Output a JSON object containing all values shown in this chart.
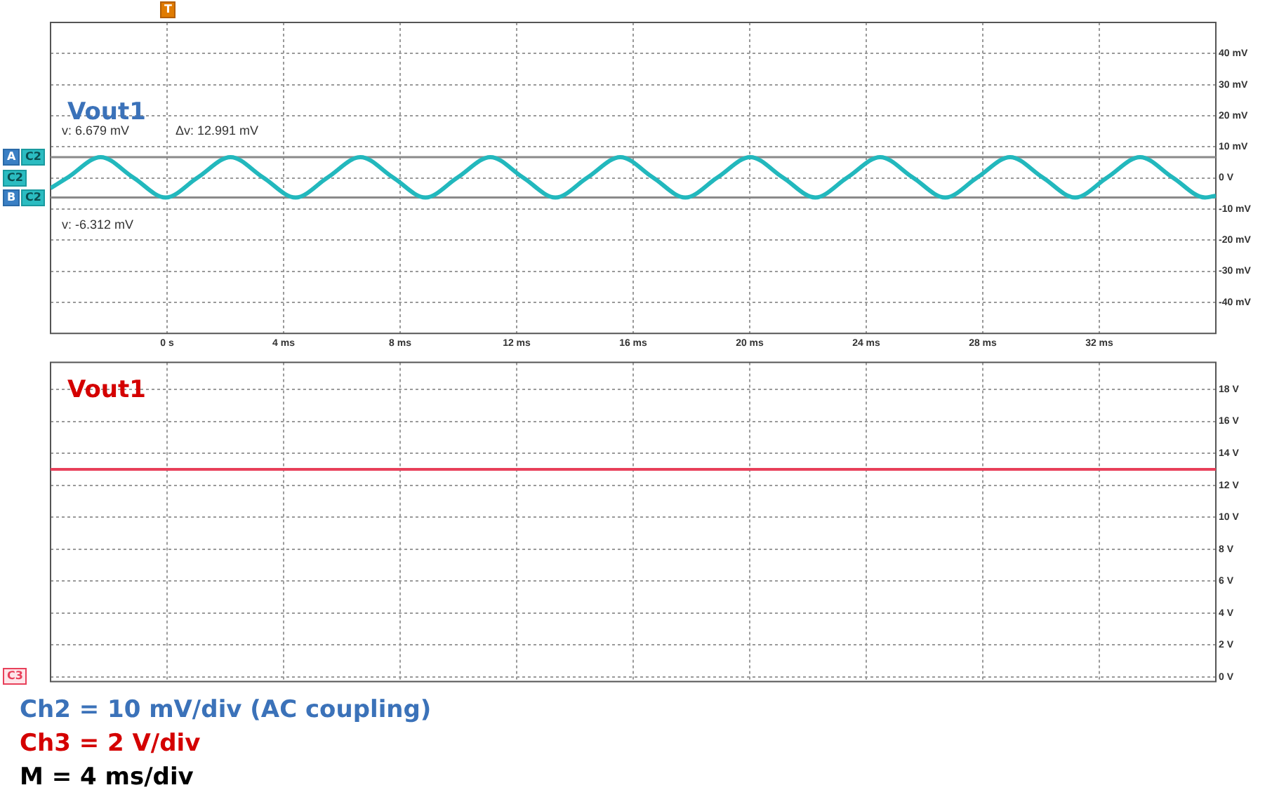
{
  "chart_data": [
    {
      "type": "line",
      "title": "Vout1",
      "xlim": [
        -4,
        36
      ],
      "xticks": [
        {
          "value": 0,
          "label": "0 s"
        },
        {
          "value": 4,
          "label": "4 ms"
        },
        {
          "value": 8,
          "label": "8 ms"
        },
        {
          "value": 12,
          "label": "12 ms"
        },
        {
          "value": 16,
          "label": "16 ms"
        },
        {
          "value": 20,
          "label": "20 ms"
        },
        {
          "value": 24,
          "label": "24 ms"
        },
        {
          "value": 28,
          "label": "28 ms"
        },
        {
          "value": 32,
          "label": "32 ms"
        }
      ],
      "ylim": [
        -50,
        50
      ],
      "yticks": [
        {
          "value": -40,
          "label": "-40 mV"
        },
        {
          "value": -30,
          "label": "-30 mV"
        },
        {
          "value": -20,
          "label": "-20 mV"
        },
        {
          "value": -10,
          "label": "-10 mV"
        },
        {
          "value": 0,
          "label": "0 V"
        },
        {
          "value": 10,
          "label": "10 mV"
        },
        {
          "value": 20,
          "label": "20 mV"
        },
        {
          "value": 30,
          "label": "30 mV"
        },
        {
          "value": 40,
          "label": "40 mV"
        }
      ],
      "grid": true,
      "legend": false,
      "marker": "none",
      "line_style": "solid",
      "series": [
        {
          "color": "#22b8bd",
          "x": [
            -4,
            -3.4,
            -2.28,
            -1.17,
            -0.05,
            1.06,
            2.18,
            3.29,
            4.41,
            5.52,
            6.64,
            7.75,
            8.87,
            9.98,
            11.1,
            12.21,
            13.33,
            14.44,
            15.56,
            16.67,
            17.79,
            18.9,
            20.02,
            21.13,
            22.25,
            23.36,
            24.48,
            25.59,
            26.71,
            27.82,
            28.94,
            30.05,
            31.17,
            32.28,
            33.4,
            34.51,
            35.63,
            36
          ],
          "values": [
            -3.3,
            0.2,
            6.7,
            0.2,
            -6.3,
            0.2,
            6.7,
            0.2,
            -6.3,
            0.2,
            6.7,
            0.2,
            -6.3,
            0.2,
            6.7,
            0.2,
            -6.3,
            0.2,
            6.7,
            0.2,
            -6.3,
            0.2,
            6.7,
            0.2,
            -6.3,
            0.2,
            6.7,
            0.2,
            -6.3,
            0.2,
            6.7,
            0.2,
            -6.3,
            0.2,
            6.7,
            0.2,
            -6.3,
            -5.7
          ]
        }
      ],
      "ref_lines": [
        {
          "axis": "y",
          "value": 6.679,
          "label": "v: 6.679 mV",
          "color": "#8a8a8a"
        },
        {
          "axis": "y",
          "value": -6.312,
          "label": "v: -6.312 mV",
          "color": "#8a8a8a"
        }
      ],
      "annotations": [
        "Δv: 12.991 mV",
        "T",
        "A",
        "C2",
        "C2",
        "B",
        "C2"
      ]
    },
    {
      "type": "line",
      "title": "Vout1",
      "xlim": [
        -4,
        36
      ],
      "xticks": [
        0,
        4,
        8,
        12,
        16,
        20,
        24,
        28,
        32
      ],
      "ylim": [
        -0.3,
        19.7
      ],
      "yticks": [
        {
          "value": 0,
          "label": "0 V"
        },
        {
          "value": 2,
          "label": "2 V"
        },
        {
          "value": 4,
          "label": "4 V"
        },
        {
          "value": 6,
          "label": "6 V"
        },
        {
          "value": 8,
          "label": "8 V"
        },
        {
          "value": 10,
          "label": "10 V"
        },
        {
          "value": 12,
          "label": "12 V"
        },
        {
          "value": 14,
          "label": "14 V"
        },
        {
          "value": 16,
          "label": "16 V"
        },
        {
          "value": 18,
          "label": "18 V"
        }
      ],
      "grid": true,
      "legend": false,
      "marker": "none",
      "line_style": "solid",
      "tick_labels": "y",
      "series": [
        {
          "color": "#e8405a",
          "x": [
            -4,
            36
          ],
          "values": [
            13.0,
            13.0
          ]
        }
      ],
      "annotations": [
        "C3",
        "Ch2 = 10 mV/div (AC coupling)",
        "Ch3 = 2 V/div",
        "M = 4 ms/div"
      ]
    }
  ]
}
